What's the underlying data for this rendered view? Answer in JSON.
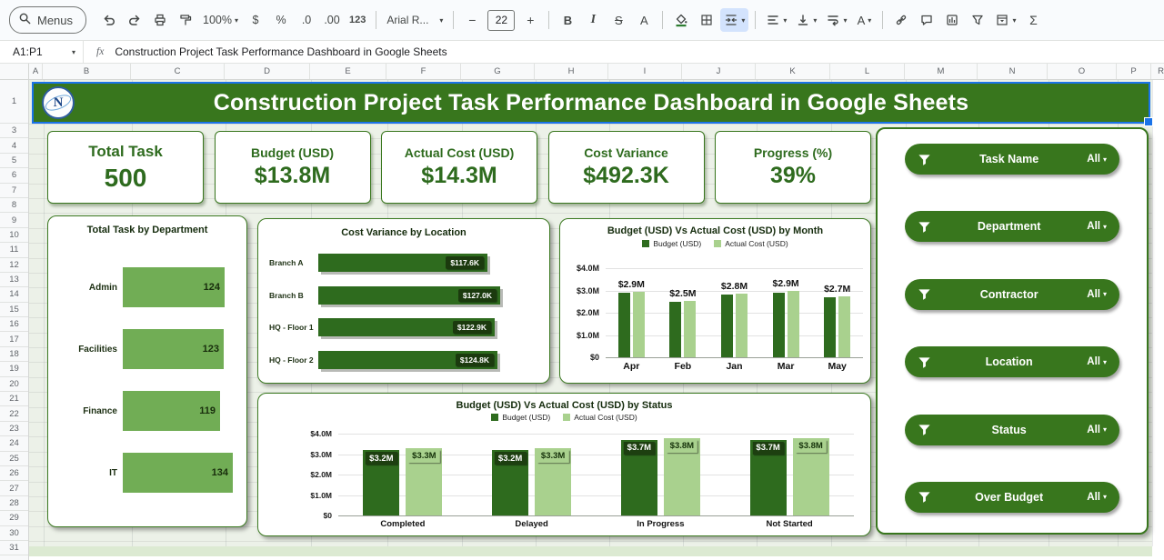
{
  "toolbar": {
    "menus_label": "Menus",
    "zoom_value": "100%",
    "currency_label": "$",
    "percent_label": "%",
    "decrease_decimal_label": ".0",
    "increase_decimal_label": ".00",
    "more_formats_label": "123",
    "font_name": "Arial R...",
    "minus_label": "−",
    "font_size": "22",
    "plus_label": "+",
    "bold_label": "B",
    "italic_label": "I",
    "strikethrough_label": "S",
    "text_color_label": "A",
    "text_rotation_label": "A",
    "functions_label": "Σ"
  },
  "formula_bar": {
    "name_box_value": "A1:P1",
    "fx_label": "fx",
    "formula_text": "Construction Project Task Performance Dashboard in Google Sheets"
  },
  "grid": {
    "column_headers": [
      "A",
      "B",
      "C",
      "D",
      "E",
      "F",
      "G",
      "H",
      "I",
      "J",
      "K",
      "L",
      "M",
      "N",
      "O",
      "P",
      "R"
    ],
    "row_headers": [
      "1",
      "3",
      "4",
      "5",
      "6",
      "7",
      "8",
      "9",
      "10",
      "11",
      "12",
      "13",
      "14",
      "15",
      "16",
      "17",
      "18",
      "19",
      "20",
      "21",
      "22",
      "23",
      "24",
      "25",
      "26",
      "27",
      "28",
      "29",
      "30",
      "31"
    ]
  },
  "dashboard": {
    "title": "Construction Project Task Performance Dashboard in Google Sheets",
    "colors": {
      "banner_green": "#38761d",
      "dark_green": "#2e6b1e",
      "mid_green": "#71ad55",
      "light_green": "#a9d18e",
      "selection_blue": "#1a73e8",
      "sheet_background": "#ecf1e8"
    },
    "kpis": [
      {
        "label": "Total Task",
        "value": "500"
      },
      {
        "label": "Budget (USD)",
        "value": "$13.8M"
      },
      {
        "label": "Actual Cost (USD)",
        "value": "$14.3M"
      },
      {
        "label": "Cost Variance",
        "value": "$492.3K"
      },
      {
        "label": "Progress (%)",
        "value": "39%"
      }
    ],
    "slicers": [
      {
        "label": "Task Name",
        "value": "All"
      },
      {
        "label": "Department",
        "value": "All"
      },
      {
        "label": "Contractor",
        "value": "All"
      },
      {
        "label": "Location",
        "value": "All"
      },
      {
        "label": "Status",
        "value": "All"
      },
      {
        "label": "Over Budget",
        "value": "All"
      }
    ]
  },
  "chart_data": [
    {
      "type": "bar",
      "orientation": "horizontal",
      "title": "Total Task by Department",
      "categories": [
        "Admin",
        "Facilities",
        "Finance",
        "IT"
      ],
      "values": [
        124,
        123,
        119,
        134
      ],
      "xlim": [
        0,
        140
      ],
      "bar_color": "#71ad55",
      "grid": false,
      "legend_position": "none"
    },
    {
      "type": "bar",
      "orientation": "horizontal",
      "title": "Cost Variance by Location",
      "categories": [
        "Branch A",
        "Branch B",
        "HQ - Floor 1",
        "HQ - Floor 2"
      ],
      "values": [
        117.6,
        127.0,
        122.9,
        124.8
      ],
      "labels": [
        "$117.6K",
        "$127.0K",
        "$122.9K",
        "$124.8K"
      ],
      "xlim": [
        0,
        135
      ],
      "bar_color": "#2e6b1e",
      "grid": false,
      "legend_position": "none"
    },
    {
      "type": "grouped_bar",
      "title": "Budget (USD) Vs Actual Cost (USD) by Month",
      "categories": [
        "Apr",
        "Feb",
        "Jan",
        "Mar",
        "May"
      ],
      "series": [
        {
          "name": "Budget (USD)",
          "color": "#2e6b1e",
          "values": [
            2.9,
            2.5,
            2.8,
            2.9,
            2.7
          ]
        },
        {
          "name": "Actual Cost (USD)",
          "color": "#a9d18e",
          "values": [
            2.95,
            2.55,
            2.85,
            3.0,
            2.75
          ]
        }
      ],
      "group_labels": [
        "$2.9M",
        "$2.5M",
        "$2.8M",
        "$2.9M",
        "$2.7M"
      ],
      "yticks": [
        "$4.0M",
        "$3.0M",
        "$2.0M",
        "$1.0M",
        "$0"
      ],
      "ylim": [
        0,
        4
      ],
      "grid": true,
      "legend_position": "top"
    },
    {
      "type": "grouped_bar",
      "title": "Budget (USD) Vs Actual Cost (USD) by Status",
      "categories": [
        "Completed",
        "Delayed",
        "In Progress",
        "Not Started"
      ],
      "series": [
        {
          "name": "Budget (USD)",
          "color": "#2e6b1e",
          "values": [
            3.2,
            3.2,
            3.7,
            3.7
          ],
          "labels": [
            "$3.2M",
            "$3.2M",
            "$3.7M",
            "$3.7M"
          ]
        },
        {
          "name": "Actual Cost (USD)",
          "color": "#a9d18e",
          "values": [
            3.3,
            3.3,
            3.8,
            3.8
          ],
          "labels": [
            "$3.3M",
            "$3.3M",
            "$3.8M",
            "$3.8M"
          ]
        }
      ],
      "yticks": [
        "$4.0M",
        "$3.0M",
        "$2.0M",
        "$1.0M",
        "$0"
      ],
      "ylim": [
        0,
        4
      ],
      "grid": true,
      "legend_position": "top"
    }
  ]
}
